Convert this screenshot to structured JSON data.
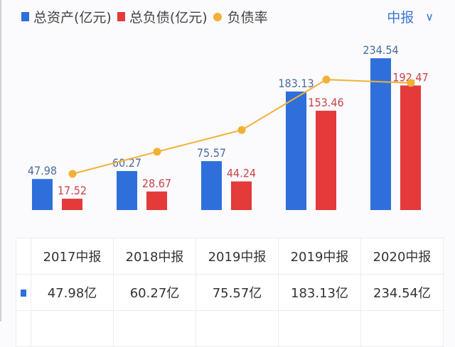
{
  "legend": {
    "items": [
      {
        "label": "总资产(亿元)",
        "color": "#2f6fdc",
        "shape": "square"
      },
      {
        "label": "总负债(亿元)",
        "color": "#e43a3a",
        "shape": "square"
      },
      {
        "label": "负债率",
        "color": "#f2b134",
        "shape": "circle"
      }
    ]
  },
  "period_selector": {
    "label": "中报",
    "icon": "chevron-down-icon"
  },
  "chart_data": {
    "type": "bar",
    "categories": [
      "2017中报",
      "2018中报",
      "2019中报",
      "2019中报",
      "2020中报"
    ],
    "series": [
      {
        "name": "总资产(亿元)",
        "type": "bar",
        "color": "#2f6fdc",
        "values": [
          47.98,
          60.27,
          75.57,
          183.13,
          234.54
        ],
        "labels": [
          "47.98",
          "60.27",
          "75.57",
          "183.13",
          "234.54"
        ]
      },
      {
        "name": "总负债(亿元)",
        "type": "bar",
        "color": "#e43a3a",
        "values": [
          17.52,
          28.67,
          44.24,
          153.46,
          192.47
        ],
        "labels": [
          "17.52",
          "28.67",
          "44.24",
          "153.46",
          "192.47"
        ]
      },
      {
        "name": "负债率",
        "type": "line",
        "color": "#f2b134",
        "values": [
          36.5,
          47.6,
          58.5,
          83.8,
          82.1
        ]
      }
    ],
    "grid": false
  },
  "table": {
    "headers": [
      "2017中报",
      "2018中报",
      "2019中报",
      "2019中报",
      "2020中报"
    ],
    "rows": [
      {
        "color": "#2f6fdc",
        "cells": [
          "47.98亿",
          "60.27亿",
          "75.57亿",
          "183.13亿",
          "234.54亿"
        ]
      }
    ]
  }
}
